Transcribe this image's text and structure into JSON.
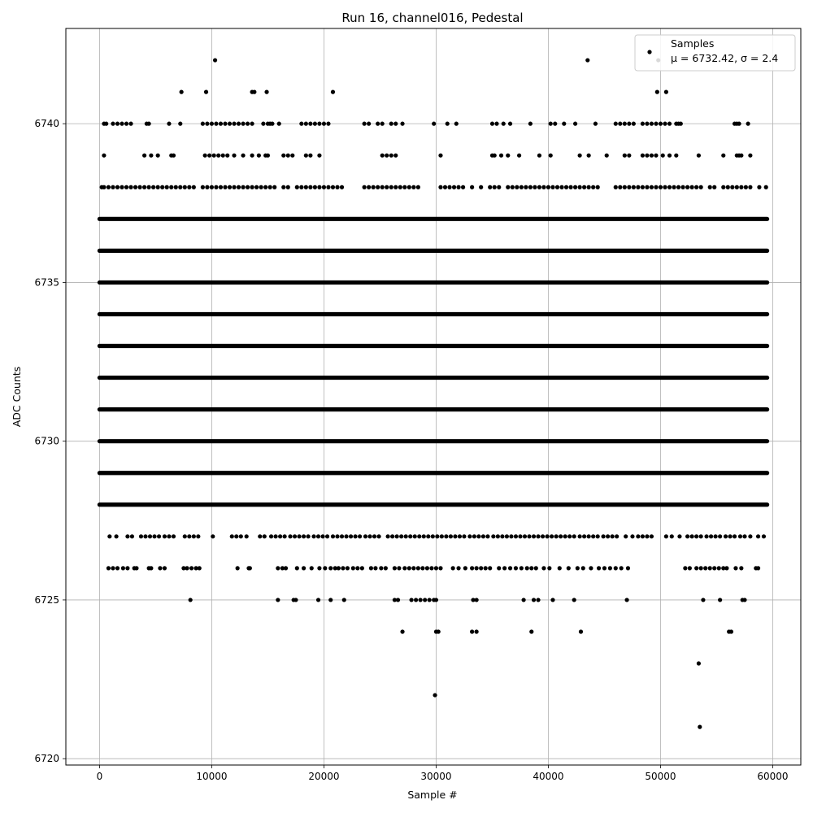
{
  "chart_data": {
    "type": "scatter",
    "title": "Run 16, channel016, Pedestal",
    "xlabel": "Sample #",
    "ylabel": "ADC Counts",
    "xlim": [
      -3000,
      62500
    ],
    "ylim": [
      6719.8,
      6743.0
    ],
    "xticks": [
      0,
      10000,
      20000,
      30000,
      40000,
      50000,
      60000
    ],
    "yticks": [
      6720,
      6725,
      6730,
      6735,
      6740
    ],
    "grid": true,
    "legend": {
      "placement": "top-right",
      "label": "Samples",
      "stats": "μ = 6732.42, σ = 2.4"
    },
    "marker_color": "#000000",
    "n_samples": 59500,
    "series": [
      {
        "name": "Samples",
        "levels": [
          {
            "y": 6728,
            "x_start": 0,
            "x_end": 59500
          },
          {
            "y": 6729,
            "x_start": 0,
            "x_end": 59500
          },
          {
            "y": 6730,
            "x_start": 0,
            "x_end": 59500
          },
          {
            "y": 6731,
            "x_start": 0,
            "x_end": 59500
          },
          {
            "y": 6732,
            "x_start": 0,
            "x_end": 59500
          },
          {
            "y": 6733,
            "x_start": 0,
            "x_end": 59500
          },
          {
            "y": 6734,
            "x_start": 0,
            "x_end": 59500
          },
          {
            "y": 6735,
            "x_start": 0,
            "x_end": 59500
          },
          {
            "y": 6736,
            "x_start": 0,
            "x_end": 59500
          },
          {
            "y": 6737,
            "x_start": 0,
            "x_end": 59500
          }
        ],
        "sparse_points": [
          {
            "y": 6738,
            "x": [
              200,
              400,
              800,
              1200,
              1600,
              2000,
              2400,
              2800,
              3200,
              3600,
              4000,
              4400,
              4800,
              5200,
              5600,
              6000,
              6400,
              6800,
              7200,
              7600,
              8000,
              8400,
              9200,
              9600,
              10000,
              10400,
              10800,
              11200,
              11600,
              12000,
              12400,
              12800,
              13200,
              13600,
              14000,
              14400,
              14800,
              15200,
              15600,
              16400,
              16800,
              17600,
              18000,
              18400,
              18800,
              19200,
              19600,
              20000,
              20400,
              20800,
              21200,
              21600,
              23600,
              24000,
              24400,
              24800,
              25200,
              25600,
              26000,
              26400,
              26800,
              27200,
              27600,
              28000,
              28400,
              30400,
              30800,
              31200,
              31600,
              32000,
              32400,
              33200,
              34000,
              34800,
              35200,
              35600,
              36400,
              36800,
              37200,
              37600,
              38000,
              38400,
              38800,
              39200,
              39600,
              40000,
              40400,
              40800,
              41200,
              41600,
              42000,
              42400,
              42800,
              43200,
              43600,
              44000,
              44400,
              46000,
              46400,
              46800,
              47200,
              47600,
              48000,
              48400,
              48800,
              49200,
              49600,
              50000,
              50400,
              50800,
              51200,
              51600,
              52000,
              52400,
              52800,
              53200,
              53600,
              54400,
              54800,
              55600,
              56000,
              56400,
              56800,
              57200,
              57600,
              58000,
              58800,
              59400
            ]
          },
          {
            "y": 6739,
            "x": [
              400,
              4000,
              4600,
              5200,
              6400,
              6600,
              9400,
              9800,
              10200,
              10600,
              11000,
              11400,
              12000,
              12800,
              13600,
              14200,
              14800,
              15000,
              16400,
              16800,
              17200,
              18400,
              18800,
              19600,
              25200,
              25600,
              26000,
              26400,
              30400,
              35000,
              35200,
              35800,
              36400,
              37400,
              39200,
              40200,
              42800,
              43600,
              45200,
              46800,
              47200,
              48400,
              48800,
              49200,
              49600,
              50200,
              50800,
              51400,
              53400,
              55600,
              56800,
              57000,
              57200,
              58000
            ]
          },
          {
            "y": 6740,
            "x": [
              400,
              600,
              1200,
              1600,
              2000,
              2400,
              2800,
              4200,
              4400,
              6200,
              7200,
              9200,
              9600,
              10000,
              10400,
              10800,
              11200,
              11600,
              12000,
              12400,
              12800,
              13200,
              13600,
              14600,
              15000,
              15200,
              15400,
              16000,
              18000,
              18400,
              18800,
              19200,
              19600,
              20000,
              20400,
              23600,
              24000,
              24800,
              25200,
              26000,
              26400,
              27000,
              29800,
              31000,
              31800,
              35000,
              35400,
              36000,
              36600,
              38400,
              40200,
              40600,
              41400,
              42400,
              44200,
              46000,
              46400,
              46800,
              47200,
              47600,
              48400,
              48800,
              49200,
              49600,
              50000,
              50400,
              50800,
              51400,
              51600,
              51800,
              56600,
              56800,
              57000,
              57800
            ]
          },
          {
            "y": 6741,
            "x": [
              7300,
              9500,
              13600,
              13800,
              14900,
              20800,
              49700,
              50500
            ]
          },
          {
            "y": 6742,
            "x": [
              10300,
              43500,
              49800
            ]
          },
          {
            "y": 6727,
            "x": [
              900,
              1500,
              2500,
              2900,
              3700,
              4100,
              4500,
              4900,
              5300,
              5800,
              6200,
              6600,
              7600,
              8000,
              8400,
              8800,
              10100,
              11800,
              12200,
              12600,
              13100,
              14300,
              14700,
              15300,
              15700,
              16100,
              16500,
              17000,
              17400,
              17800,
              18200,
              18600,
              19100,
              19500,
              19900,
              20300,
              20800,
              21200,
              21600,
              22000,
              22400,
              22800,
              23200,
              23700,
              24100,
              24500,
              24900,
              25700,
              26100,
              26500,
              26900,
              27300,
              27700,
              28100,
              28500,
              28900,
              29300,
              29700,
              30100,
              30500,
              30900,
              31300,
              31700,
              32100,
              32500,
              33000,
              33400,
              33800,
              34200,
              34600,
              35100,
              35500,
              35900,
              36300,
              36700,
              37100,
              37500,
              37900,
              38300,
              38700,
              39100,
              39500,
              39900,
              40300,
              40700,
              41100,
              41500,
              41900,
              42300,
              42800,
              43200,
              43600,
              44000,
              44400,
              44900,
              45300,
              45700,
              46100,
              46900,
              47500,
              48000,
              48400,
              48800,
              49200,
              50500,
              51000,
              51700,
              52400,
              52800,
              53200,
              53600,
              54100,
              54500,
              54900,
              55300,
              55800,
              56200,
              56600,
              57100,
              57500,
              58000,
              58700,
              59200
            ]
          },
          {
            "y": 6726,
            "x": [
              800,
              1200,
              1600,
              2100,
              2500,
              3100,
              3300,
              4400,
              4600,
              5400,
              5800,
              7500,
              7800,
              8200,
              8600,
              8900,
              12300,
              13300,
              13400,
              15900,
              16300,
              16600,
              17600,
              18200,
              18900,
              19600,
              20100,
              20600,
              21000,
              21300,
              21700,
              22100,
              22600,
              23000,
              23400,
              24200,
              24600,
              25100,
              25500,
              26300,
              26700,
              27200,
              27600,
              28000,
              28400,
              28800,
              29200,
              29600,
              30000,
              30400,
              31500,
              32000,
              32600,
              33200,
              33600,
              34000,
              34400,
              34800,
              35600,
              36100,
              36600,
              37100,
              37600,
              38100,
              38500,
              38900,
              39600,
              40100,
              41000,
              41800,
              42600,
              43100,
              43800,
              44500,
              45000,
              45500,
              46000,
              46500,
              47100,
              52200,
              52600,
              53200,
              53600,
              54000,
              54400,
              54800,
              55200,
              55600,
              55900,
              56700,
              57200,
              58500,
              58700
            ]
          },
          {
            "y": 6725,
            "x": [
              8100,
              15900,
              17300,
              17500,
              19500,
              20600,
              21800,
              26300,
              26600,
              27800,
              28200,
              28600,
              29000,
              29400,
              29800,
              30000,
              33300,
              33600,
              37800,
              38700,
              39100,
              40400,
              42300,
              47000,
              53800,
              55300,
              57300,
              57500
            ]
          },
          {
            "y": 6724,
            "x": [
              27000,
              30000,
              30200,
              33200,
              33600,
              38500,
              42900,
              56100,
              56300
            ]
          },
          {
            "y": 6723,
            "x": [
              53400
            ]
          },
          {
            "y": 6722,
            "x": [
              29900
            ]
          },
          {
            "y": 6721,
            "x": [
              53500
            ]
          }
        ]
      }
    ]
  }
}
